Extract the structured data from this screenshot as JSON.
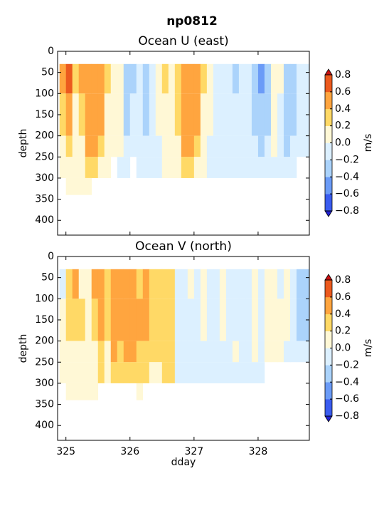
{
  "title": "np0812",
  "chart_data": [
    {
      "type": "heatmap",
      "title": "Ocean U (east)",
      "ylabel": "depth",
      "xlim": [
        324.87,
        328.8
      ],
      "ylim": [
        435,
        0
      ],
      "xticks": [
        325,
        326,
        327,
        328
      ],
      "xtick_labels": false,
      "yticks": [
        0,
        50,
        100,
        150,
        200,
        250,
        300,
        350,
        400
      ],
      "x_edges": [
        324.9,
        325.0,
        325.1,
        325.2,
        325.3,
        325.4,
        325.5,
        325.6,
        325.7,
        325.8,
        325.9,
        326.0,
        326.1,
        326.2,
        326.3,
        326.4,
        326.5,
        326.6,
        326.7,
        326.8,
        326.9,
        327.0,
        327.1,
        327.2,
        327.3,
        327.4,
        327.5,
        327.6,
        327.7,
        327.8,
        327.9,
        328.0,
        328.1,
        328.2,
        328.3,
        328.4,
        328.5,
        328.6,
        328.7,
        328.8
      ],
      "y_edges": [
        30,
        100,
        200,
        250,
        300,
        340
      ],
      "values": [
        [
          0.5,
          0.3,
          0.1,
          0.1,
          null
        ],
        [
          0.65,
          0.45,
          0.3,
          0.1,
          0.1
        ],
        [
          0.3,
          0.1,
          0.1,
          0.1,
          0.1
        ],
        [
          0.45,
          0.3,
          0.1,
          0.1,
          0.1
        ],
        [
          0.5,
          0.5,
          0.45,
          0.3,
          0.1
        ],
        [
          0.45,
          0.45,
          0.45,
          0.3,
          null
        ],
        [
          0.5,
          0.45,
          0.3,
          0.1,
          null
        ],
        [
          0.3,
          0.1,
          0.1,
          0.1,
          null
        ],
        [
          0.1,
          0.1,
          0.1,
          null,
          null
        ],
        [
          0.1,
          0.1,
          0.05,
          -0.1,
          null
        ],
        [
          -0.3,
          -0.3,
          -0.1,
          -0.1,
          null
        ],
        [
          -0.3,
          -0.1,
          -0.1,
          null,
          null
        ],
        [
          -0.1,
          -0.1,
          -0.1,
          -0.1,
          null
        ],
        [
          -0.3,
          -0.3,
          -0.1,
          -0.1,
          null
        ],
        [
          -0.1,
          -0.1,
          -0.1,
          -0.1,
          null
        ],
        [
          0.1,
          0.1,
          -0.1,
          -0.1,
          null
        ],
        [
          0.3,
          0.1,
          0.1,
          0.1,
          null
        ],
        [
          0.1,
          0.1,
          0.1,
          0.1,
          null
        ],
        [
          0.3,
          0.3,
          0.1,
          0.1,
          null
        ],
        [
          0.45,
          0.45,
          0.45,
          0.3,
          null
        ],
        [
          0.45,
          0.45,
          0.45,
          0.3,
          null
        ],
        [
          0.45,
          0.45,
          0.3,
          0.1,
          null
        ],
        [
          0.3,
          0.1,
          0.1,
          0.1,
          null
        ],
        [
          0.1,
          0.1,
          -0.1,
          -0.1,
          null
        ],
        [
          -0.1,
          -0.1,
          -0.1,
          -0.1,
          null
        ],
        [
          -0.1,
          -0.1,
          -0.1,
          -0.1,
          null
        ],
        [
          -0.1,
          -0.1,
          -0.1,
          -0.1,
          null
        ],
        [
          -0.3,
          -0.1,
          -0.1,
          -0.1,
          null
        ],
        [
          -0.1,
          -0.1,
          -0.1,
          -0.1,
          null
        ],
        [
          -0.1,
          -0.1,
          -0.1,
          -0.1,
          null
        ],
        [
          -0.3,
          -0.3,
          -0.1,
          -0.1,
          null
        ],
        [
          -0.5,
          -0.3,
          -0.3,
          -0.1,
          null
        ],
        [
          -0.3,
          -0.3,
          -0.1,
          -0.1,
          null
        ],
        [
          0.1,
          0.1,
          0.1,
          -0.1,
          null
        ],
        [
          0.1,
          -0.1,
          -0.1,
          -0.1,
          null
        ],
        [
          -0.3,
          -0.3,
          -0.3,
          -0.1,
          null
        ],
        [
          -0.3,
          -0.3,
          -0.1,
          -0.1,
          null
        ],
        [
          -0.1,
          -0.1,
          -0.1,
          null,
          null
        ],
        [
          -0.1,
          -0.1,
          -0.1,
          null,
          null
        ]
      ],
      "colorbar": {
        "label": "m/s",
        "ticks": [
          {
            "value": -0.8,
            "label": "−0.8"
          },
          {
            "value": -0.6,
            "label": "−0.6"
          },
          {
            "value": -0.4,
            "label": "−0.4"
          },
          {
            "value": -0.2,
            "label": "−0.2"
          },
          {
            "value": 0,
            "label": "0.0"
          },
          0.2,
          0.4,
          0.6,
          0.8
        ],
        "colors": [
          "#3a5cf0",
          "#6b9bf7",
          "#abd3fb",
          "#dcf0ff",
          "#fff8d6",
          "#ffd966",
          "#ffa53f",
          "#ec5a1e"
        ],
        "under": "#2020d0",
        "over": "#c81010"
      }
    },
    {
      "type": "heatmap",
      "title": "Ocean V (north)",
      "ylabel": "depth",
      "xlabel": "dday",
      "xlim": [
        324.87,
        328.8
      ],
      "ylim": [
        435,
        0
      ],
      "xticks": [
        325,
        326,
        327,
        328
      ],
      "xtick_labels": true,
      "yticks": [
        0,
        50,
        100,
        150,
        200,
        250,
        300,
        350,
        400
      ],
      "x_edges": [
        324.9,
        325.0,
        325.1,
        325.2,
        325.3,
        325.4,
        325.5,
        325.6,
        325.7,
        325.8,
        325.9,
        326.0,
        326.1,
        326.2,
        326.3,
        326.4,
        326.5,
        326.6,
        326.7,
        326.8,
        326.9,
        327.0,
        327.1,
        327.2,
        327.3,
        327.4,
        327.5,
        327.6,
        327.7,
        327.8,
        327.9,
        328.0,
        328.1,
        328.2,
        328.3,
        328.4,
        328.5,
        328.6,
        328.7,
        328.8
      ],
      "y_edges": [
        30,
        100,
        200,
        250,
        300,
        340
      ],
      "values": [
        [
          -0.1,
          0.1,
          0.1,
          0.1,
          null
        ],
        [
          0.3,
          0.3,
          0.1,
          0.1,
          0.1
        ],
        [
          0.45,
          0.3,
          0.1,
          0.1,
          0.1
        ],
        [
          0.1,
          0.3,
          0.1,
          0.1,
          0.1
        ],
        [
          0.1,
          0.1,
          0.1,
          0.1,
          0.1
        ],
        [
          0.45,
          0.3,
          0.1,
          0.1,
          0.1
        ],
        [
          0.45,
          0.45,
          0.3,
          0.3,
          null
        ],
        [
          0.3,
          0.3,
          0.1,
          0.1,
          null
        ],
        [
          0.45,
          0.45,
          0.45,
          0.3,
          null
        ],
        [
          0.45,
          0.45,
          0.3,
          0.3,
          null
        ],
        [
          0.45,
          0.45,
          0.45,
          0.3,
          null
        ],
        [
          0.45,
          0.45,
          0.45,
          0.3,
          null
        ],
        [
          0.3,
          0.45,
          0.3,
          0.3,
          0.1
        ],
        [
          0.45,
          0.45,
          0.3,
          0.3,
          null
        ],
        [
          0.3,
          0.3,
          0.3,
          0.1,
          null
        ],
        [
          0.3,
          0.3,
          0.3,
          0.1,
          null
        ],
        [
          0.3,
          0.3,
          0.3,
          0.3,
          null
        ],
        [
          0.3,
          0.3,
          0.3,
          0.3,
          null
        ],
        [
          -0.1,
          -0.1,
          -0.1,
          -0.1,
          null
        ],
        [
          -0.1,
          -0.1,
          -0.1,
          -0.1,
          null
        ],
        [
          0.1,
          -0.1,
          -0.1,
          -0.1,
          null
        ],
        [
          -0.1,
          -0.1,
          -0.1,
          -0.1,
          null
        ],
        [
          0.1,
          0.1,
          -0.1,
          -0.1,
          null
        ],
        [
          -0.1,
          -0.1,
          -0.1,
          -0.1,
          null
        ],
        [
          -0.1,
          -0.1,
          -0.1,
          -0.1,
          null
        ],
        [
          0.1,
          0.1,
          -0.1,
          -0.1,
          null
        ],
        [
          -0.1,
          -0.1,
          -0.1,
          -0.1,
          null
        ],
        [
          -0.1,
          -0.1,
          0.1,
          -0.1,
          null
        ],
        [
          -0.1,
          -0.1,
          -0.1,
          -0.1,
          null
        ],
        [
          -0.1,
          -0.1,
          -0.1,
          -0.1,
          null
        ],
        [
          0.1,
          0.1,
          0.1,
          -0.1,
          null
        ],
        [
          -0.1,
          -0.1,
          -0.1,
          -0.1,
          null
        ],
        [
          0.1,
          0.1,
          0.1,
          null,
          null
        ],
        [
          0.1,
          0.1,
          0.1,
          null,
          null
        ],
        [
          -0.1,
          0.1,
          0.1,
          null,
          null
        ],
        [
          0.1,
          0.1,
          -0.1,
          null,
          null
        ],
        [
          -0.1,
          -0.1,
          -0.1,
          null,
          null
        ],
        [
          -0.3,
          -0.3,
          -0.1,
          null,
          null
        ],
        [
          -0.3,
          -0.3,
          -0.1,
          null,
          null
        ]
      ],
      "colorbar": {
        "label": "m/s",
        "ticks": [
          {
            "value": -0.8,
            "label": "−0.8"
          },
          {
            "value": -0.6,
            "label": "−0.6"
          },
          {
            "value": -0.4,
            "label": "−0.4"
          },
          {
            "value": -0.2,
            "label": "−0.2"
          },
          {
            "value": 0,
            "label": "0.0"
          },
          0.2,
          0.4,
          0.6,
          0.8
        ],
        "colors": [
          "#3a5cf0",
          "#6b9bf7",
          "#abd3fb",
          "#dcf0ff",
          "#fff8d6",
          "#ffd966",
          "#ffa53f",
          "#ec5a1e"
        ],
        "under": "#2020d0",
        "over": "#c81010"
      }
    }
  ]
}
